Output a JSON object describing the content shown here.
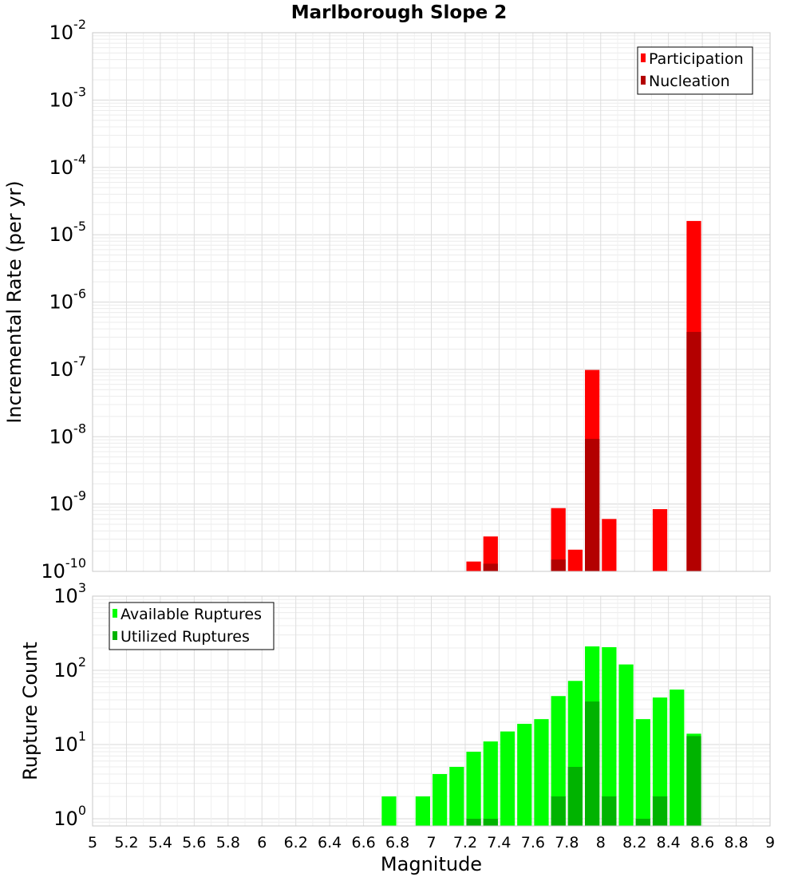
{
  "chart_data": [
    {
      "type": "bar",
      "title": "Marlborough Slope 2",
      "ylabel": "Incremental Rate (per yr)",
      "xlabel": "",
      "y_scale": "log",
      "ylim": [
        1e-10,
        0.01
      ],
      "xlim": [
        5,
        9
      ],
      "y_ticks": [
        {
          "base": "10",
          "exp": "-10",
          "value": 1e-10
        },
        {
          "base": "10",
          "exp": "-9",
          "value": 1e-09
        },
        {
          "base": "10",
          "exp": "-8",
          "value": 1e-08
        },
        {
          "base": "10",
          "exp": "-7",
          "value": 1e-07
        },
        {
          "base": "10",
          "exp": "-6",
          "value": 1e-06
        },
        {
          "base": "10",
          "exp": "-5",
          "value": 1e-05
        },
        {
          "base": "10",
          "exp": "-4",
          "value": 0.0001
        },
        {
          "base": "10",
          "exp": "-3",
          "value": 0.001
        },
        {
          "base": "10",
          "exp": "-2",
          "value": 0.01
        }
      ],
      "bar_width": 0.1,
      "grid": true,
      "legend_position": "top-right",
      "series": [
        {
          "name": "Participation",
          "color": "#ff0000",
          "x": [
            7.25,
            7.35,
            7.75,
            7.85,
            7.95,
            8.05,
            8.35,
            8.55
          ],
          "values": [
            1.4e-10,
            3.3e-10,
            8.7e-10,
            2.1e-10,
            9.8e-08,
            6e-10,
            8.4e-10,
            1.6e-05
          ]
        },
        {
          "name": "Nucleation",
          "color": "#b30000",
          "x": [
            7.35,
            7.75,
            7.95,
            8.55
          ],
          "values": [
            1.3e-10,
            1.5e-10,
            9.3e-09,
            3.6e-07
          ]
        }
      ]
    },
    {
      "type": "bar",
      "title": "",
      "ylabel": "Rupture Count",
      "xlabel": "Magnitude",
      "y_scale": "log",
      "ylim": [
        0.8,
        1000
      ],
      "xlim": [
        5,
        9
      ],
      "y_ticks": [
        {
          "base": "10",
          "exp": "0",
          "value": 1
        },
        {
          "base": "10",
          "exp": "1",
          "value": 10
        },
        {
          "base": "10",
          "exp": "2",
          "value": 100
        },
        {
          "base": "10",
          "exp": "3",
          "value": 1000
        }
      ],
      "x_ticks": [
        "5",
        "5.2",
        "5.4",
        "5.6",
        "5.8",
        "6",
        "6.2",
        "6.4",
        "6.6",
        "6.8",
        "7",
        "7.2",
        "7.4",
        "7.6",
        "7.8",
        "8",
        "8.2",
        "8.4",
        "8.6",
        "8.8",
        "9"
      ],
      "bar_width": 0.1,
      "grid": true,
      "legend_position": "top-left",
      "series": [
        {
          "name": "Available Ruptures",
          "color": "#00ff00",
          "x": [
            6.75,
            6.95,
            7.05,
            7.15,
            7.25,
            7.35,
            7.45,
            7.55,
            7.65,
            7.75,
            7.85,
            7.95,
            8.05,
            8.15,
            8.25,
            8.35,
            8.45,
            8.55
          ],
          "values": [
            2,
            2,
            4,
            5,
            8,
            11,
            15,
            19,
            22,
            45,
            72,
            210,
            205,
            120,
            22,
            43,
            55,
            14
          ]
        },
        {
          "name": "Utilized Ruptures",
          "color": "#00b300",
          "x": [
            7.25,
            7.35,
            7.75,
            7.85,
            7.95,
            8.05,
            8.25,
            8.35,
            8.55
          ],
          "values": [
            1,
            1,
            2,
            5,
            38,
            2,
            1,
            2,
            13
          ]
        }
      ]
    }
  ]
}
